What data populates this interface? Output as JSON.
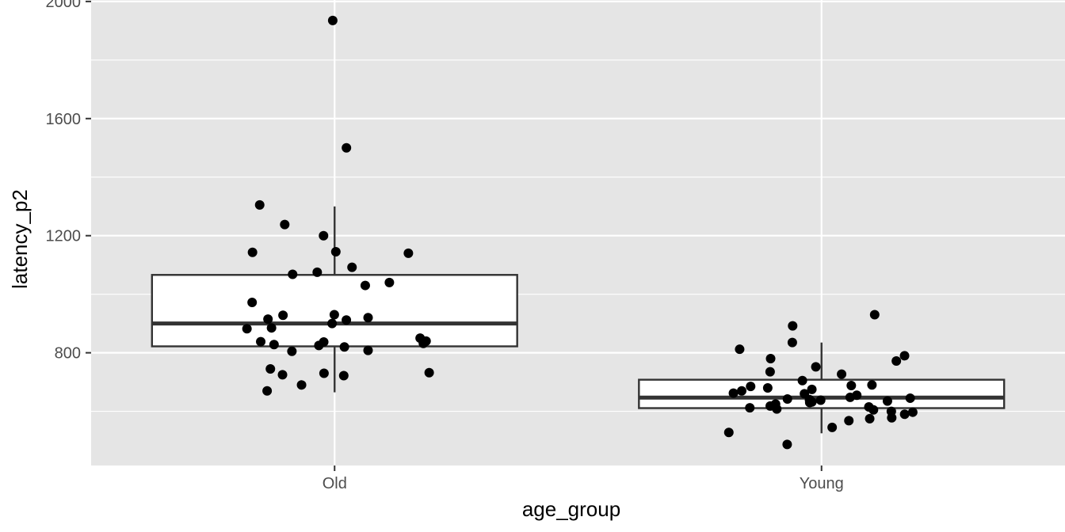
{
  "chart_data": {
    "type": "boxplot",
    "xlabel": "age_group",
    "ylabel": "latency_p2",
    "categories": [
      "Old",
      "Young"
    ],
    "ylim": [
      415,
      2005
    ],
    "y_ticks": [
      800,
      1200,
      1600,
      2000
    ],
    "grid": true,
    "colors": {
      "panel_background": "#e5e5e5",
      "grid": "#ffffff",
      "box_fill": "#ffffff",
      "box_outline": "#333333",
      "points": "#000000"
    },
    "boxes": [
      {
        "category": "Old",
        "whisker_low": 665,
        "q1": 822,
        "median": 900,
        "q3": 1066,
        "whisker_high": 1300
      },
      {
        "category": "Young",
        "whisker_low": 525,
        "q1": 611,
        "median": 647,
        "q3": 708,
        "whisker_high": 835
      }
    ],
    "points": [
      {
        "category": "Old",
        "y": [
          1935,
          1500,
          1305,
          1238,
          1200,
          1145,
          1143,
          1140,
          1092,
          1075,
          1068,
          1040,
          1030,
          972,
          930,
          928,
          920,
          915,
          912,
          900,
          885,
          882,
          850,
          840,
          838,
          837,
          832,
          828,
          825,
          820,
          808,
          805,
          745,
          732,
          730,
          725,
          722,
          690,
          670
        ]
      },
      {
        "category": "Young",
        "y": [
          930,
          892,
          835,
          812,
          790,
          780,
          772,
          752,
          735,
          727,
          705,
          690,
          688,
          685,
          680,
          675,
          670,
          662,
          660,
          655,
          648,
          645,
          642,
          640,
          638,
          637,
          635,
          632,
          630,
          625,
          618,
          615,
          612,
          608,
          605,
          600,
          597,
          590,
          578,
          575,
          568,
          545,
          528,
          487
        ]
      }
    ]
  }
}
